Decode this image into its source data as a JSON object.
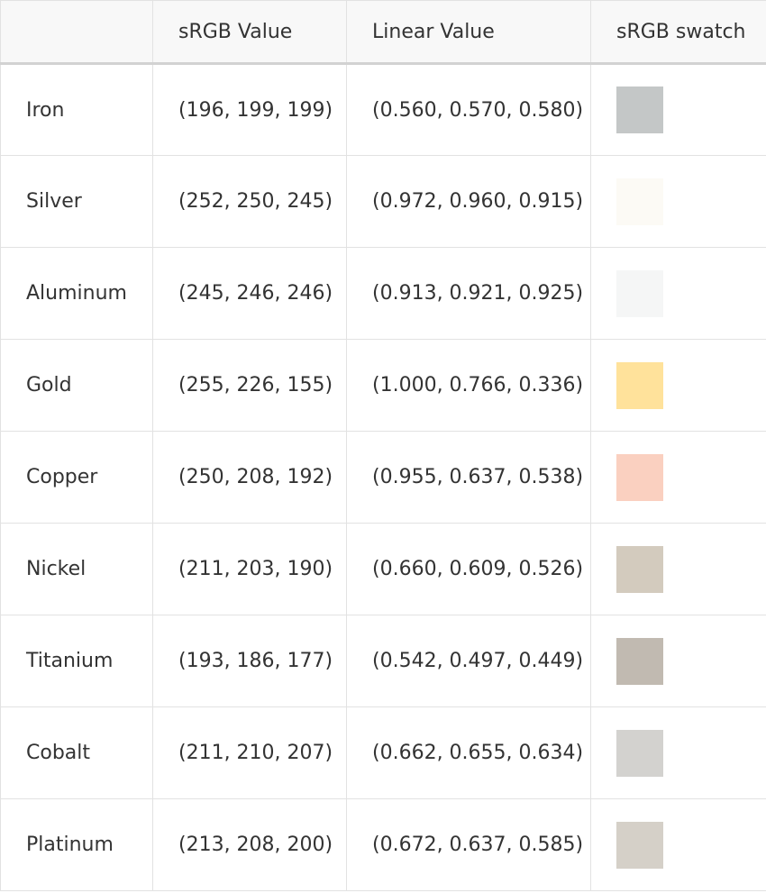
{
  "table": {
    "headers": [
      "",
      "sRGB Value",
      "Linear Value",
      "sRGB swatch"
    ],
    "rows": [
      {
        "name": "Iron",
        "srgb": "(196, 199, 199)",
        "linear": "(0.560, 0.570, 0.580)",
        "swatch_color": "#c4c7c7"
      },
      {
        "name": "Silver",
        "srgb": "(252, 250, 245)",
        "linear": "(0.972, 0.960, 0.915)",
        "swatch_color": "#fcfaf5"
      },
      {
        "name": "Aluminum",
        "srgb": "(245, 246, 246)",
        "linear": "(0.913, 0.921, 0.925)",
        "swatch_color": "#f5f6f6"
      },
      {
        "name": "Gold",
        "srgb": "(255, 226, 155)",
        "linear": "(1.000, 0.766, 0.336)",
        "swatch_color": "#ffe29b"
      },
      {
        "name": "Copper",
        "srgb": "(250, 208, 192)",
        "linear": "(0.955, 0.637, 0.538)",
        "swatch_color": "#fad0c0"
      },
      {
        "name": "Nickel",
        "srgb": "(211, 203, 190)",
        "linear": "(0.660, 0.609, 0.526)",
        "swatch_color": "#d3cbbe"
      },
      {
        "name": "Titanium",
        "srgb": "(193, 186, 177)",
        "linear": "(0.542, 0.497, 0.449)",
        "swatch_color": "#c1bab1"
      },
      {
        "name": "Cobalt",
        "srgb": "(211, 210, 207)",
        "linear": "(0.662, 0.655, 0.634)",
        "swatch_color": "#d3d2cf"
      },
      {
        "name": "Platinum",
        "srgb": "(213, 208, 200)",
        "linear": "(0.672, 0.637, 0.585)",
        "swatch_color": "#d5d0c8"
      }
    ]
  }
}
